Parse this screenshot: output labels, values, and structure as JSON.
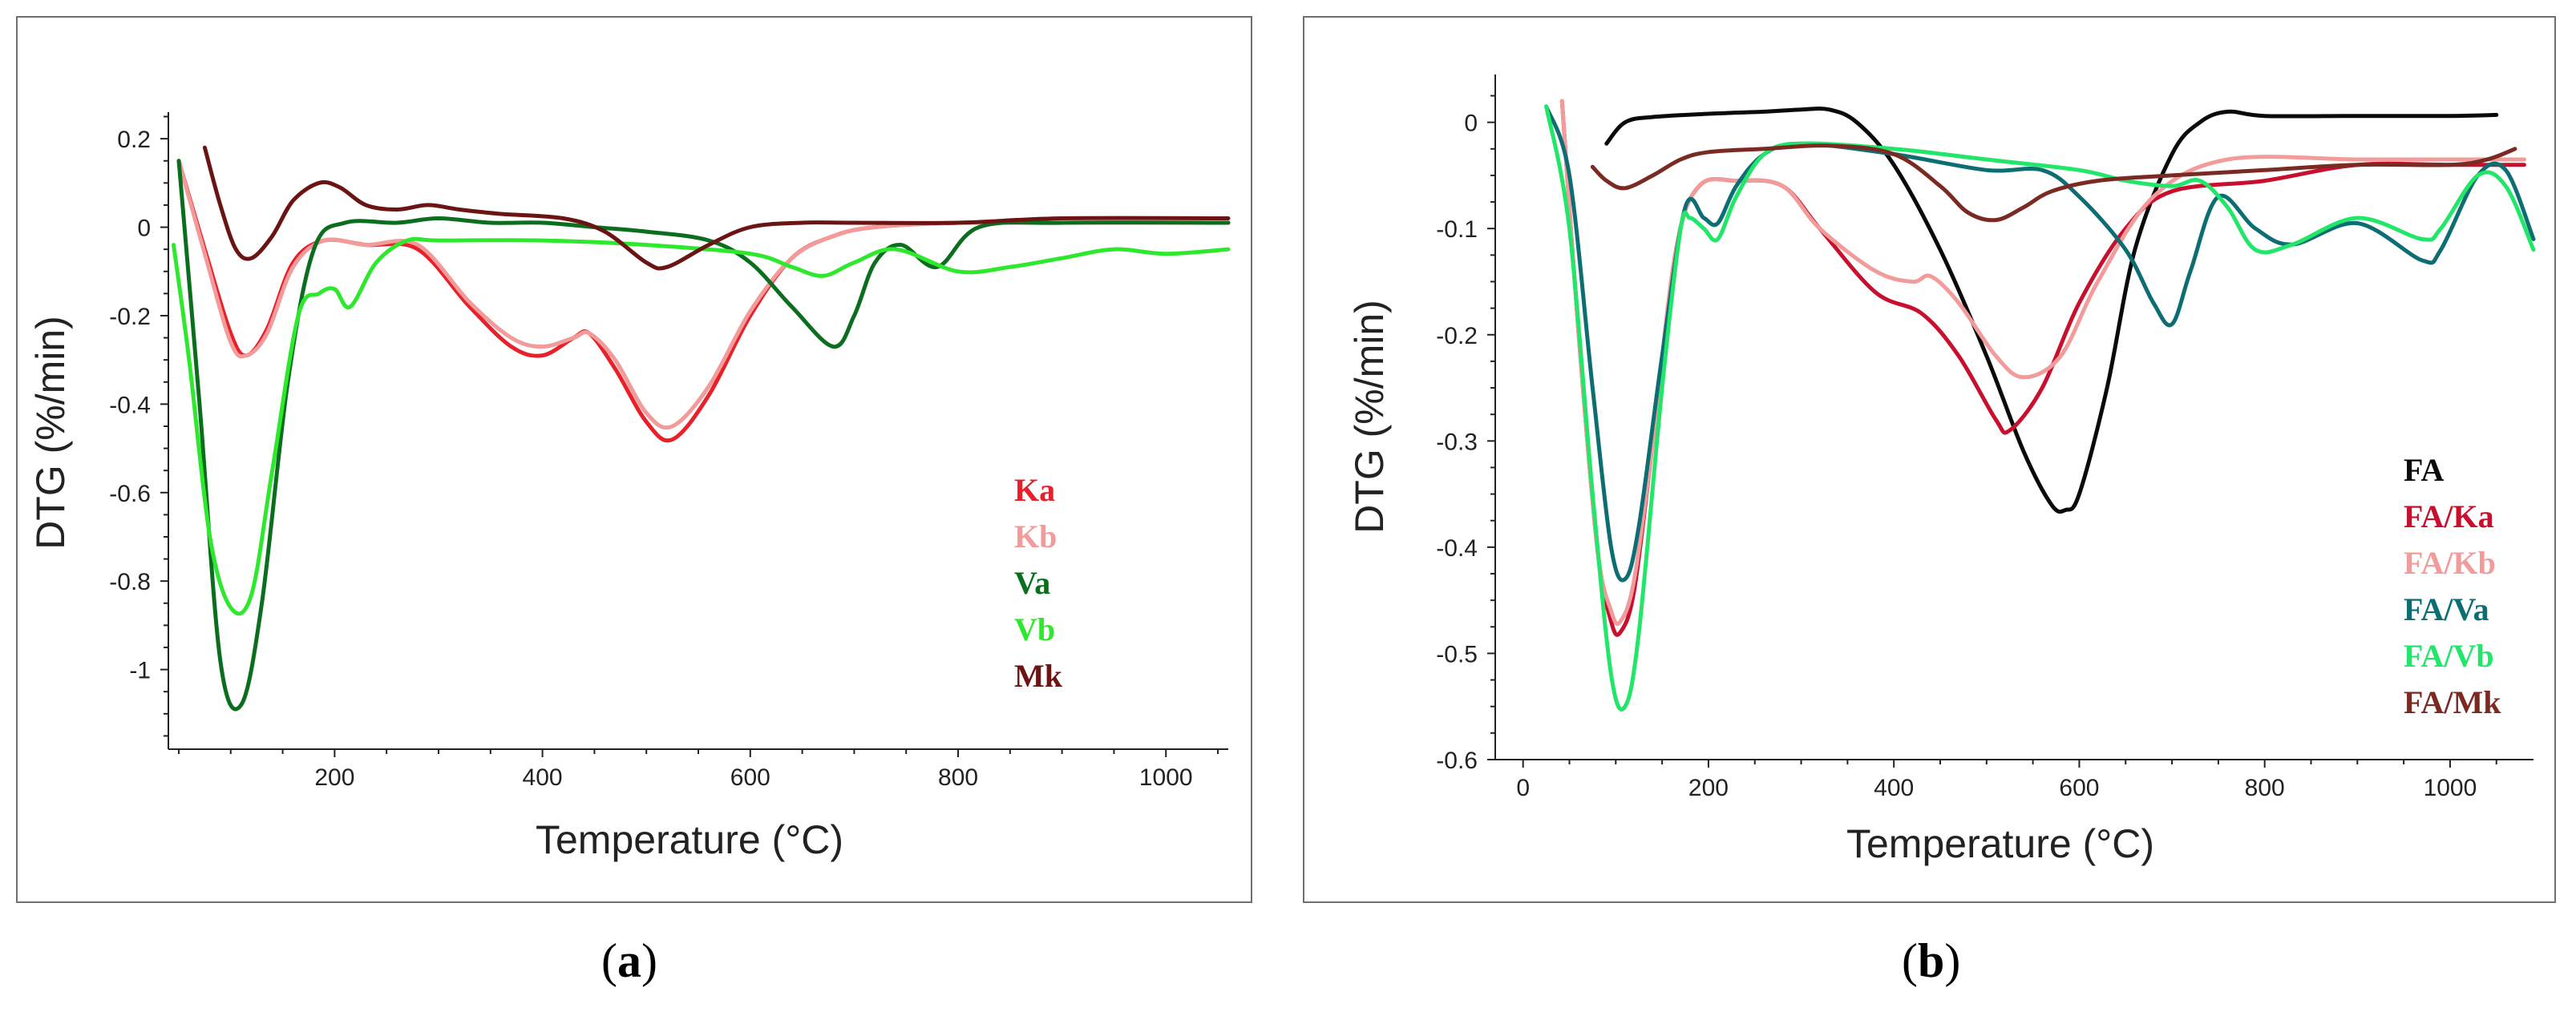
{
  "chart_data": [
    {
      "type": "line",
      "panel": "a",
      "caption_letter": "a",
      "caption_open": "(",
      "caption_close": ")",
      "xlabel": "Temperature (°C)",
      "ylabel": "DTG (%/min)",
      "xlim": [
        40,
        1060
      ],
      "ylim": [
        -1.18,
        0.26
      ],
      "xticks": [
        200,
        400,
        600,
        800,
        1000
      ],
      "xtick_labels": [
        "200",
        "400",
        "600",
        "800",
        "1000"
      ],
      "yticks": [
        0.2,
        0,
        -0.2,
        -0.4,
        -0.6,
        -0.8,
        -1
      ],
      "ytick_labels": [
        "0.2",
        "0",
        "-0.2",
        "-0.4",
        "-0.6",
        "-0.8",
        "-1"
      ],
      "legend_position": "bottom-right",
      "series": [
        {
          "name": "Ka",
          "color": "#e8202a",
          "x": [
            50,
            75,
            100,
            115,
            135,
            160,
            190,
            230,
            280,
            330,
            370,
            400,
            430,
            445,
            470,
            500,
            525,
            560,
            600,
            640,
            680,
            720,
            800,
            900,
            1060
          ],
          "y": [
            0.15,
            -0.05,
            -0.24,
            -0.29,
            -0.23,
            -0.08,
            -0.03,
            -0.04,
            -0.05,
            -0.18,
            -0.27,
            -0.29,
            -0.25,
            -0.24,
            -0.32,
            -0.44,
            -0.48,
            -0.38,
            -0.2,
            -0.07,
            -0.02,
            0,
            0.01,
            0.01,
            0.01
          ]
        },
        {
          "name": "Kb",
          "color": "#f39a9a",
          "x": [
            50,
            75,
            100,
            115,
            135,
            160,
            190,
            230,
            280,
            330,
            370,
            400,
            430,
            445,
            470,
            500,
            525,
            560,
            600,
            640,
            680,
            720,
            800,
            900,
            1060
          ],
          "y": [
            0.15,
            -0.06,
            -0.26,
            -0.29,
            -0.24,
            -0.09,
            -0.03,
            -0.04,
            -0.04,
            -0.17,
            -0.25,
            -0.27,
            -0.25,
            -0.24,
            -0.3,
            -0.42,
            -0.45,
            -0.36,
            -0.19,
            -0.07,
            -0.02,
            0,
            0.01,
            0.01,
            0.01
          ]
        },
        {
          "name": "Va",
          "color": "#0b6e1e",
          "x": [
            50,
            70,
            90,
            110,
            130,
            155,
            180,
            210,
            260,
            300,
            350,
            400,
            450,
            500,
            560,
            600,
            640,
            680,
            700,
            720,
            745,
            780,
            820,
            900,
            1060
          ],
          "y": [
            0.15,
            -0.4,
            -0.98,
            -1.08,
            -0.85,
            -0.35,
            -0.05,
            0.01,
            0.01,
            0.02,
            0.01,
            0.01,
            0,
            -0.01,
            -0.03,
            -0.08,
            -0.18,
            -0.27,
            -0.2,
            -0.08,
            -0.04,
            -0.09,
            0,
            0.01,
            0.01
          ]
        },
        {
          "name": "Vb",
          "color": "#2ee82e",
          "x": [
            45,
            60,
            80,
            100,
            120,
            140,
            165,
            185,
            200,
            215,
            240,
            270,
            300,
            400,
            500,
            600,
            640,
            670,
            700,
            740,
            800,
            850,
            900,
            950,
            1000,
            1060
          ],
          "y": [
            -0.04,
            -0.3,
            -0.7,
            -0.86,
            -0.83,
            -0.55,
            -0.2,
            -0.15,
            -0.14,
            -0.18,
            -0.08,
            -0.03,
            -0.03,
            -0.03,
            -0.04,
            -0.06,
            -0.09,
            -0.11,
            -0.08,
            -0.05,
            -0.1,
            -0.09,
            -0.07,
            -0.05,
            -0.06,
            -0.05
          ]
        },
        {
          "name": "Mk",
          "color": "#6b1414",
          "x": [
            75,
            90,
            105,
            120,
            140,
            160,
            185,
            205,
            230,
            260,
            290,
            320,
            360,
            420,
            460,
            500,
            520,
            560,
            600,
            650,
            700,
            800,
            900,
            1060
          ],
          "y": [
            0.18,
            0.05,
            -0.05,
            -0.07,
            -0.02,
            0.06,
            0.1,
            0.09,
            0.05,
            0.04,
            0.05,
            0.04,
            0.03,
            0.02,
            -0.01,
            -0.08,
            -0.09,
            -0.04,
            0,
            0.01,
            0.01,
            0.01,
            0.02,
            0.02
          ]
        }
      ]
    },
    {
      "type": "line",
      "panel": "b",
      "caption_letter": "b",
      "caption_open": "(",
      "caption_close": ")",
      "xlabel": "Temperature (°C)",
      "ylabel": "DTG (%/min)",
      "xlim": [
        -30,
        1090
      ],
      "ylim": [
        -0.6,
        0.045
      ],
      "xticks": [
        0,
        200,
        400,
        600,
        800,
        1000
      ],
      "xtick_labels": [
        "0",
        "200",
        "400",
        "600",
        "800",
        "1000"
      ],
      "yticks": [
        0,
        -0.1,
        -0.2,
        -0.3,
        -0.4,
        -0.5,
        -0.6
      ],
      "ytick_labels": [
        "0",
        "-0.1",
        "-0.2",
        "-0.3",
        "-0.4",
        "-0.5",
        "-0.6"
      ],
      "legend_position": "bottom-right",
      "series": [
        {
          "name": "FA",
          "color": "#0a0a0a",
          "x": [
            90,
            110,
            140,
            200,
            260,
            300,
            330,
            360,
            400,
            450,
            500,
            540,
            570,
            585,
            600,
            630,
            660,
            700,
            730,
            760,
            800,
            900,
            1000,
            1050
          ],
          "y": [
            -0.02,
            0,
            0.005,
            0.008,
            0.01,
            0.012,
            0.012,
            0,
            -0.04,
            -0.12,
            -0.22,
            -0.31,
            -0.36,
            -0.365,
            -0.35,
            -0.25,
            -0.12,
            -0.03,
            0,
            0.01,
            0.006,
            0.006,
            0.006,
            0.007
          ]
        },
        {
          "name": "FA/Ka",
          "color": "#c8102e",
          "x": [
            42,
            60,
            80,
            95,
            105,
            120,
            140,
            165,
            190,
            230,
            280,
            320,
            380,
            430,
            470,
            510,
            525,
            560,
            600,
            650,
            700,
            800,
            900,
            1000,
            1080
          ],
          "y": [
            0.02,
            -0.2,
            -0.4,
            -0.47,
            -0.48,
            -0.44,
            -0.3,
            -0.12,
            -0.06,
            -0.055,
            -0.06,
            -0.1,
            -0.16,
            -0.18,
            -0.22,
            -0.28,
            -0.29,
            -0.25,
            -0.17,
            -0.1,
            -0.065,
            -0.055,
            -0.04,
            -0.04,
            -0.04
          ]
        },
        {
          "name": "FA/Kb",
          "color": "#f29b9b",
          "x": [
            42,
            60,
            80,
            95,
            105,
            120,
            140,
            165,
            190,
            230,
            280,
            320,
            380,
            420,
            440,
            470,
            510,
            540,
            580,
            620,
            680,
            760,
            900,
            1000,
            1080
          ],
          "y": [
            0.02,
            -0.2,
            -0.4,
            -0.46,
            -0.47,
            -0.43,
            -0.3,
            -0.12,
            -0.06,
            -0.055,
            -0.06,
            -0.1,
            -0.14,
            -0.15,
            -0.145,
            -0.17,
            -0.22,
            -0.24,
            -0.22,
            -0.15,
            -0.07,
            -0.035,
            -0.035,
            -0.035,
            -0.035
          ]
        },
        {
          "name": "FA/Va",
          "color": "#0c6e73",
          "x": [
            25,
            50,
            75,
            95,
            110,
            125,
            150,
            175,
            195,
            210,
            230,
            260,
            300,
            400,
            500,
            560,
            600,
            650,
            680,
            700,
            720,
            750,
            790,
            830,
            900,
            970,
            990,
            1030,
            1060,
            1090
          ],
          "y": [
            0.015,
            -0.05,
            -0.25,
            -0.4,
            -0.43,
            -0.38,
            -0.22,
            -0.08,
            -0.09,
            -0.095,
            -0.06,
            -0.03,
            -0.02,
            -0.03,
            -0.045,
            -0.045,
            -0.07,
            -0.12,
            -0.17,
            -0.19,
            -0.14,
            -0.07,
            -0.1,
            -0.115,
            -0.095,
            -0.13,
            -0.12,
            -0.05,
            -0.045,
            -0.11
          ]
        },
        {
          "name": "FA/Vb",
          "color": "#22e66a",
          "x": [
            25,
            50,
            75,
            95,
            110,
            125,
            150,
            170,
            180,
            195,
            210,
            230,
            260,
            300,
            400,
            500,
            600,
            650,
            700,
            730,
            760,
            790,
            830,
            900,
            970,
            990,
            1030,
            1060,
            1090
          ],
          "y": [
            0.015,
            -0.1,
            -0.35,
            -0.52,
            -0.55,
            -0.48,
            -0.25,
            -0.1,
            -0.09,
            -0.1,
            -0.11,
            -0.07,
            -0.03,
            -0.02,
            -0.025,
            -0.035,
            -0.045,
            -0.055,
            -0.06,
            -0.055,
            -0.08,
            -0.12,
            -0.115,
            -0.09,
            -0.11,
            -0.1,
            -0.05,
            -0.06,
            -0.12
          ]
        },
        {
          "name": "FA/Mk",
          "color": "#7a2a22",
          "x": [
            75,
            90,
            110,
            140,
            170,
            200,
            260,
            330,
            400,
            450,
            480,
            510,
            540,
            570,
            620,
            700,
            800,
            900,
            1000,
            1040,
            1070
          ],
          "y": [
            -0.042,
            -0.055,
            -0.062,
            -0.05,
            -0.035,
            -0.028,
            -0.025,
            -0.022,
            -0.03,
            -0.06,
            -0.085,
            -0.092,
            -0.08,
            -0.065,
            -0.055,
            -0.05,
            -0.045,
            -0.04,
            -0.04,
            -0.035,
            -0.025
          ]
        }
      ]
    }
  ]
}
